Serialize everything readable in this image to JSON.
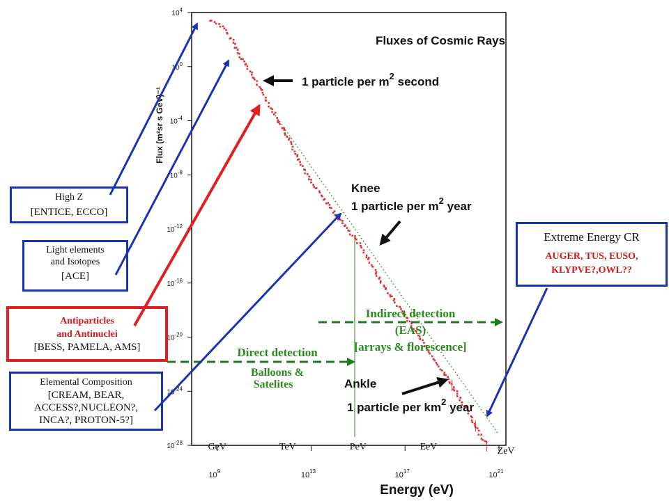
{
  "chart_data": {
    "type": "line",
    "title": "Fluxes of Cosmic Rays",
    "xlabel": "Energy (eV)",
    "ylabel": "Flux (m²sr s GeV)⁻¹",
    "x_scale": "log",
    "y_scale": "log",
    "xlim": [
      100000000.0,
      1e+21
    ],
    "ylim": [
      1e-28,
      10000.0
    ],
    "x_ticks": [
      {
        "label": "10",
        "exp": "9",
        "value": 1000000000.0
      },
      {
        "label": "10",
        "exp": "13",
        "value": 10000000000000.0
      },
      {
        "label": "10",
        "exp": "17",
        "value": 1e+17
      },
      {
        "label": "10",
        "exp": "21",
        "value": 1e+21
      }
    ],
    "y_ticks": [
      {
        "label": "10",
        "exp": "4",
        "value": 10000.0
      },
      {
        "label": "10",
        "exp": "0",
        "value": 1.0
      },
      {
        "label": "10",
        "exp": "-4",
        "value": 0.0001
      },
      {
        "label": "10",
        "exp": "-8",
        "value": 1e-08
      },
      {
        "label": "10",
        "exp": "-12",
        "value": 1e-12
      },
      {
        "label": "10",
        "exp": "-16",
        "value": 1e-16
      },
      {
        "label": "10",
        "exp": "-20",
        "value": 1e-20
      },
      {
        "label": "10",
        "exp": "-24",
        "value": 1e-24
      },
      {
        "label": "10",
        "exp": "-28",
        "value": 1e-28
      }
    ],
    "energy_units": [
      "GeV",
      "TeV",
      "PeV",
      "EeV",
      "ZeV"
    ],
    "series": [
      {
        "color": "#e03030",
        "points": [
          [
            500000000.0,
            2500
          ],
          [
            1000000000.0,
            1800
          ],
          [
            2000000000.0,
            600
          ],
          [
            5000000000.0,
            60
          ],
          [
            10000000000.0,
            6
          ],
          [
            30000000000.0,
            0.25
          ],
          [
            100000000000.0,
            0.008
          ],
          [
            300000000000.0,
            0.00025
          ],
          [
            1000000000000.0,
            6e-06
          ],
          [
            10000000000000.0,
            3e-09
          ],
          [
            100000000000000.0,
            1.5e-11
          ],
          [
            1000000000000000.0,
            1e-13
          ],
          [
            3000000000000000.0,
            5e-15
          ],
          [
            1e+16,
            1e-16
          ],
          [
            1e+17,
            4e-19
          ],
          [
            1e+18,
            1e-21
          ],
          [
            1e+19,
            3e-24
          ],
          [
            1e+20,
            3e-27
          ],
          [
            3e+20,
            1e-28
          ]
        ]
      }
    ],
    "reference_line": {
      "color": "#2a9a2a",
      "points": [
        [
          300000000000.0,
          0.00025
        ],
        [
          1e+21,
          6e-28
        ]
      ]
    },
    "annotations": [
      "1 particle per m² second",
      "Knee",
      "1 particle per m² year",
      "Ankle",
      "1 particle per km² year"
    ]
  },
  "annotation_text": {
    "m2_second": {
      "pre": "1 particle per m",
      "sup": "2",
      "post": " second"
    },
    "knee": "Knee",
    "m2_year": {
      "pre": "1 particle per m",
      "sup": "2",
      "post": " year"
    },
    "ankle": "Ankle",
    "km2_year": {
      "pre": "1 particle per km",
      "sup": "2",
      "post": " year"
    }
  },
  "detection": {
    "indirect": [
      "Indirect detection",
      "(EAS)",
      "[arrays & florescence]"
    ],
    "direct": [
      "Direct detection",
      "Balloons &",
      "Satelites"
    ]
  },
  "boxes": {
    "high_z": [
      "High Z",
      "[ENTICE, ECCO]"
    ],
    "light": [
      "Light elements",
      "and Isotopes",
      "[ACE]"
    ],
    "antiparticles": [
      "Antiparticles",
      "and Antinuclei",
      "[BESS, PAMELA, AMS]"
    ],
    "elemental": [
      "Elemental Composition",
      "[CREAM, BEAR,",
      "ACCESS?,NUCLEON?,",
      "INCA?, PROTON-5?]"
    ],
    "extreme": [
      "Extreme Energy CR",
      "AUGER, TUS, EUSO,",
      "KLYPVE?,OWL??"
    ]
  },
  "colors": {
    "blue": "#1a33b5",
    "red": "#e02020",
    "green_dash": "#1e7a1e",
    "olive": "#2a8a1e"
  }
}
